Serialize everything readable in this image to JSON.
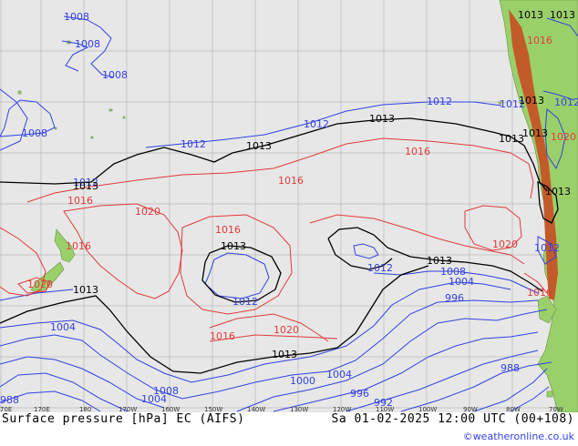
{
  "map": {
    "title": "Surface pressure [hPa] EC (AIFS)",
    "valid_time": "Sa 01-02-2025 12:00 UTC (00+108)",
    "credit": "©weatheronline.co.uk",
    "lon_ticks": [
      "70E",
      "170E",
      "180",
      "170W",
      "160W",
      "150W",
      "140W",
      "130W",
      "120W",
      "110W",
      "100W",
      "90W",
      "80W",
      "70W"
    ],
    "isobar_labels": {
      "blue": [
        "1008",
        "1008",
        "1008",
        "1008",
        "1012",
        "1012",
        "1012",
        "1012",
        "1012",
        "1012",
        "1012",
        "1008",
        "1004",
        "996",
        "1004",
        "1004",
        "1000",
        "996",
        "992",
        "988",
        "1008",
        "1004",
        "988",
        "1012",
        "1012"
      ],
      "red": [
        "1016",
        "1016",
        "1016",
        "1020",
        "1016",
        "1016",
        "1020",
        "1016",
        "1020",
        "1020",
        "1016",
        "1020",
        "1016"
      ],
      "black": [
        "1013",
        "1013",
        "1013",
        "1013",
        "1013",
        "1013",
        "1013",
        "1013",
        "1013",
        "1013",
        "1013",
        "1013",
        "1013"
      ]
    },
    "colors": {
      "blue_isobar": "#3340e0",
      "red_isobar": "#e03a3a",
      "black_isobar": "#000000",
      "land": "#9ad06a",
      "ocean": "#e7e7e7"
    }
  }
}
